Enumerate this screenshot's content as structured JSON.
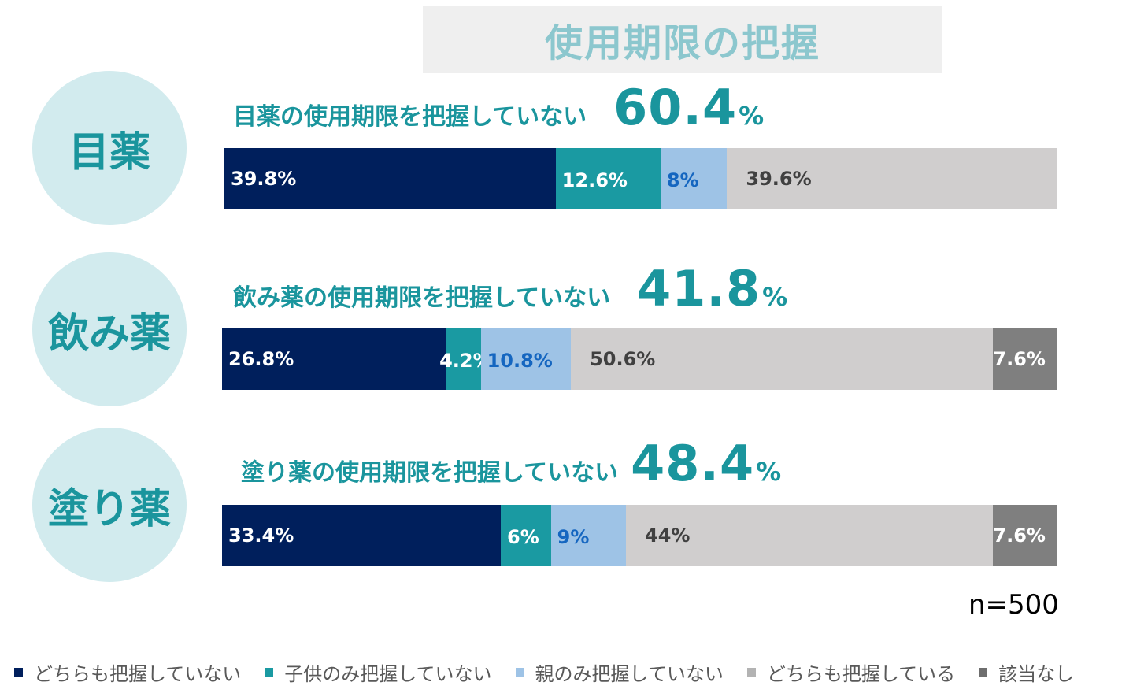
{
  "title": "使用期限の把握",
  "sample_size": "n=500",
  "colors": {
    "neither_unknown": "#001f5c",
    "child_only": "#1a9aa2",
    "parent_only": "#9ec3e6",
    "both_known": "#d0cece",
    "na": "#7f7f7f",
    "accent": "#1a959d"
  },
  "legend": [
    {
      "label": "どちらも把握していない",
      "color": "#001f5c"
    },
    {
      "label": "子供のみ把握していない",
      "color": "#1a9aa2"
    },
    {
      "label": "親のみ把握していない",
      "color": "#9ec3e6"
    },
    {
      "label": "どちらも把握している",
      "color": "#b3b3b3"
    },
    {
      "label": "該当なし",
      "color": "#6e6e6e"
    }
  ],
  "rows": [
    {
      "category": "目薬",
      "headline": "目薬の使用期限を把握していない",
      "total": "60.4",
      "pct_sign": "%"
    },
    {
      "category": "飲み薬",
      "headline": "飲み薬の使用期限を把握していない",
      "total": "41.8",
      "pct_sign": "%"
    },
    {
      "category": "塗り薬",
      "headline": "塗り薬の使用期限を把握していない",
      "total": "48.4",
      "pct_sign": "%"
    }
  ],
  "chart_data": {
    "type": "bar",
    "orientation": "horizontal-stacked-100",
    "title": "使用期限の把握",
    "categories": [
      "目薬",
      "飲み薬",
      "塗り薬"
    ],
    "series": [
      {
        "name": "どちらも把握していない",
        "values": [
          39.8,
          26.8,
          33.4
        ],
        "labels": [
          "39.8%",
          "26.8%",
          "33.4%"
        ]
      },
      {
        "name": "子供のみ把握していない",
        "values": [
          12.6,
          4.2,
          6
        ],
        "labels": [
          "12.6%",
          "4.2%",
          "6%"
        ]
      },
      {
        "name": "親のみ把握していない",
        "values": [
          8,
          10.8,
          9
        ],
        "labels": [
          "8%",
          "10.8%",
          "9%"
        ]
      },
      {
        "name": "どちらも把握している",
        "values": [
          39.6,
          50.6,
          44
        ],
        "labels": [
          "39.6%",
          "50.6%",
          "44%"
        ]
      },
      {
        "name": "該当なし",
        "values": [
          0,
          7.6,
          7.6
        ],
        "labels": [
          "",
          "7.6%",
          "7.6%"
        ]
      }
    ],
    "xlim": [
      0,
      100
    ],
    "legend_position": "bottom"
  }
}
